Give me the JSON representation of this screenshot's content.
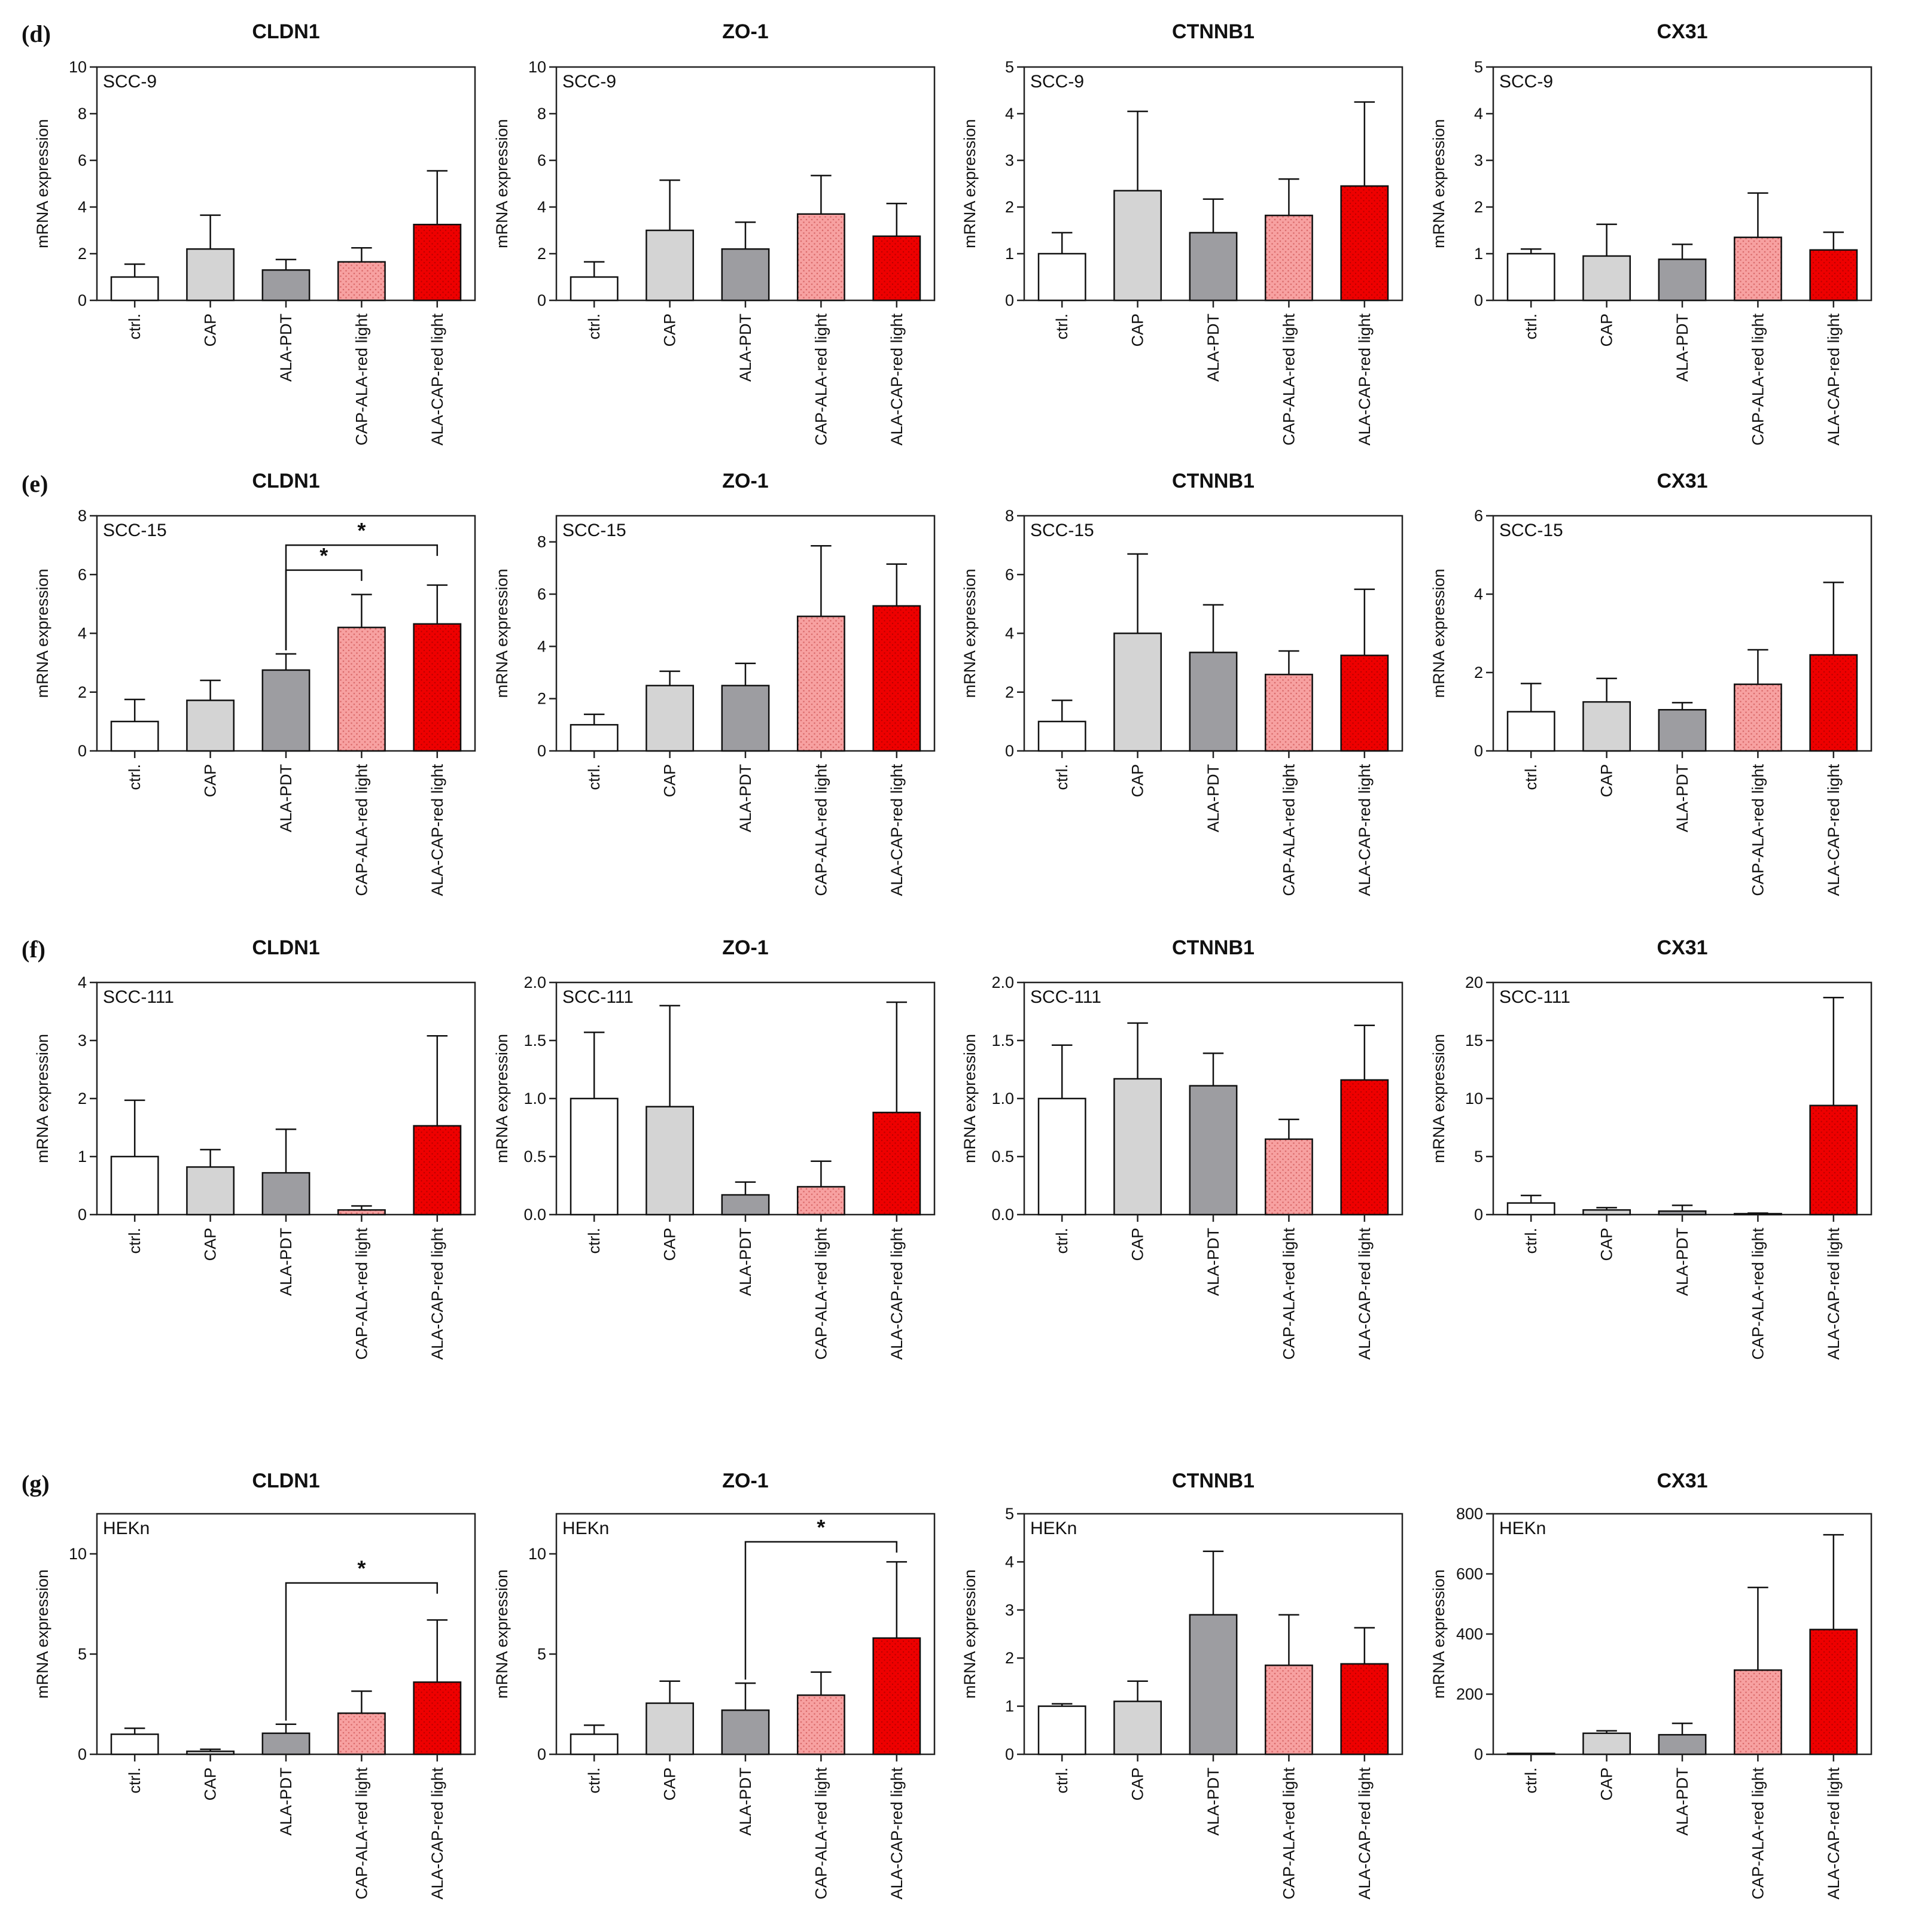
{
  "categories": [
    "ctrl.",
    "CAP",
    "ALA-PDT",
    "CAP-ALA-red light",
    "ALA-CAP-red light"
  ],
  "ylabel": "mRNA expression",
  "colors": {
    "ctrl": "#ffffff",
    "cap": "#d4d4d4",
    "alapdt": "#9d9da1",
    "capala": "#f7a1a1",
    "alacap": "#ee0000",
    "stroke": "#111111",
    "dots": "#d96a6a"
  },
  "rows": [
    {
      "letter": "(d)"
    },
    {
      "letter": "(e)"
    },
    {
      "letter": "(f)"
    },
    {
      "letter": "(g)"
    }
  ],
  "chart_data": [
    {
      "type": "bar",
      "row": 0,
      "col": 0,
      "title": "CLDN1",
      "cell_line": "SCC-9",
      "ylim": [
        0,
        10
      ],
      "yticks": [
        "0",
        "2",
        "4",
        "6",
        "8",
        "10"
      ],
      "values": [
        1.0,
        2.2,
        1.3,
        1.65,
        3.25
      ],
      "errors": [
        0.55,
        1.45,
        0.45,
        0.6,
        2.3
      ],
      "sig": []
    },
    {
      "type": "bar",
      "row": 0,
      "col": 1,
      "title": "ZO-1",
      "cell_line": "SCC-9",
      "ylim": [
        0,
        10
      ],
      "yticks": [
        "0",
        "2",
        "4",
        "6",
        "8",
        "10"
      ],
      "values": [
        1.0,
        3.0,
        2.2,
        3.7,
        2.75
      ],
      "errors": [
        0.65,
        2.15,
        1.15,
        1.65,
        1.4
      ],
      "sig": []
    },
    {
      "type": "bar",
      "row": 0,
      "col": 2,
      "title": "CTNNB1",
      "cell_line": "SCC-9",
      "ylim": [
        0,
        5
      ],
      "yticks": [
        "0",
        "1",
        "2",
        "3",
        "4",
        "5"
      ],
      "values": [
        1.0,
        2.35,
        1.45,
        1.82,
        2.45
      ],
      "errors": [
        0.45,
        1.7,
        0.72,
        0.78,
        1.8
      ],
      "sig": []
    },
    {
      "type": "bar",
      "row": 0,
      "col": 3,
      "title": "CX31",
      "cell_line": "SCC-9",
      "ylim": [
        0,
        5
      ],
      "yticks": [
        "0",
        "1",
        "2",
        "3",
        "4",
        "5"
      ],
      "values": [
        1.0,
        0.95,
        0.88,
        1.35,
        1.08
      ],
      "errors": [
        0.1,
        0.68,
        0.32,
        0.95,
        0.38
      ],
      "sig": []
    },
    {
      "type": "bar",
      "row": 1,
      "col": 0,
      "title": "CLDN1",
      "cell_line": "SCC-15",
      "ylim": [
        0,
        8
      ],
      "yticks": [
        "0",
        "2",
        "4",
        "6",
        "8"
      ],
      "values": [
        1.0,
        1.72,
        2.75,
        4.2,
        4.32
      ],
      "errors": [
        0.75,
        0.68,
        0.55,
        1.12,
        1.32
      ],
      "sig": [
        {
          "from": 2,
          "to": 3,
          "level": 6.15,
          "label": "*"
        },
        {
          "from": 2,
          "to": 4,
          "level": 7.0,
          "label": "*"
        }
      ]
    },
    {
      "type": "bar",
      "row": 1,
      "col": 1,
      "title": "ZO-1",
      "cell_line": "SCC-15",
      "ylim": [
        0,
        9
      ],
      "yticks": [
        "0",
        "2",
        "4",
        "6",
        "8"
      ],
      "values": [
        1.0,
        2.5,
        2.5,
        5.15,
        5.55
      ],
      "errors": [
        0.4,
        0.55,
        0.85,
        2.7,
        1.6
      ],
      "sig": []
    },
    {
      "type": "bar",
      "row": 1,
      "col": 2,
      "title": "CTNNB1",
      "cell_line": "SCC-15",
      "ylim": [
        0,
        8
      ],
      "yticks": [
        "0",
        "2",
        "4",
        "6",
        "8"
      ],
      "values": [
        1.0,
        4.0,
        3.35,
        2.6,
        3.25
      ],
      "errors": [
        0.72,
        2.7,
        1.62,
        0.8,
        2.25
      ],
      "sig": []
    },
    {
      "type": "bar",
      "row": 1,
      "col": 3,
      "title": "CX31",
      "cell_line": "SCC-15",
      "ylim": [
        0,
        6
      ],
      "yticks": [
        "0",
        "2",
        "4",
        "6"
      ],
      "values": [
        1.0,
        1.25,
        1.05,
        1.7,
        2.45
      ],
      "errors": [
        0.72,
        0.6,
        0.18,
        0.88,
        1.85
      ],
      "sig": []
    },
    {
      "type": "bar",
      "row": 2,
      "col": 0,
      "title": "CLDN1",
      "cell_line": "SCC-111",
      "ylim": [
        0,
        4
      ],
      "yticks": [
        "0",
        "1",
        "2",
        "3",
        "4"
      ],
      "values": [
        1.0,
        0.82,
        0.72,
        0.08,
        1.53
      ],
      "errors": [
        0.97,
        0.3,
        0.75,
        0.07,
        1.55
      ],
      "sig": []
    },
    {
      "type": "bar",
      "row": 2,
      "col": 1,
      "title": "ZO-1",
      "cell_line": "SCC-111",
      "ylim": [
        0,
        2
      ],
      "yticks": [
        "0.0",
        "0.5",
        "1.0",
        "1.5",
        "2.0"
      ],
      "values": [
        1.0,
        0.93,
        0.17,
        0.24,
        0.88
      ],
      "errors": [
        0.57,
        0.87,
        0.11,
        0.22,
        0.95
      ],
      "sig": []
    },
    {
      "type": "bar",
      "row": 2,
      "col": 2,
      "title": "CTNNB1",
      "cell_line": "SCC-111",
      "ylim": [
        0,
        2
      ],
      "yticks": [
        "0.0",
        "0.5",
        "1.0",
        "1.5",
        "2.0"
      ],
      "values": [
        1.0,
        1.17,
        1.11,
        0.65,
        1.16
      ],
      "errors": [
        0.46,
        0.48,
        0.28,
        0.17,
        0.47
      ],
      "sig": []
    },
    {
      "type": "bar",
      "row": 2,
      "col": 3,
      "title": "CX31",
      "cell_line": "SCC-111",
      "ylim": [
        0,
        20
      ],
      "yticks": [
        "0",
        "5",
        "10",
        "15",
        "20"
      ],
      "values": [
        1.0,
        0.4,
        0.3,
        0.08,
        9.4
      ],
      "errors": [
        0.65,
        0.2,
        0.5,
        0.05,
        9.3
      ],
      "sig": []
    },
    {
      "type": "bar",
      "row": 3,
      "col": 0,
      "title": "CLDN1",
      "cell_line": "HEKn",
      "ylim": [
        0,
        12
      ],
      "yticks": [
        "0",
        "5",
        "10"
      ],
      "values": [
        1.0,
        0.15,
        1.05,
        2.05,
        3.6
      ],
      "errors": [
        0.3,
        0.1,
        0.45,
        1.1,
        3.1
      ],
      "sig": [
        {
          "from": 2,
          "to": 4,
          "level": 8.55,
          "label": "*"
        }
      ]
    },
    {
      "type": "bar",
      "row": 3,
      "col": 1,
      "title": "ZO-1",
      "cell_line": "HEKn",
      "ylim": [
        0,
        12
      ],
      "yticks": [
        "0",
        "5",
        "10"
      ],
      "values": [
        1.0,
        2.55,
        2.2,
        2.95,
        5.8
      ],
      "errors": [
        0.45,
        1.1,
        1.35,
        1.15,
        3.8
      ],
      "sig": [
        {
          "from": 2,
          "to": 4,
          "level": 10.6,
          "label": "*"
        }
      ]
    },
    {
      "type": "bar",
      "row": 3,
      "col": 2,
      "title": "CTNNB1",
      "cell_line": "HEKn",
      "ylim": [
        0,
        5
      ],
      "yticks": [
        "0",
        "1",
        "2",
        "3",
        "4",
        "5"
      ],
      "values": [
        1.0,
        1.1,
        2.9,
        1.85,
        1.88
      ],
      "errors": [
        0.05,
        0.42,
        1.32,
        1.05,
        0.75
      ],
      "sig": []
    },
    {
      "type": "bar",
      "row": 3,
      "col": 3,
      "title": "CX31",
      "cell_line": "HEKn",
      "ylim": [
        0,
        800
      ],
      "yticks": [
        "0",
        "200",
        "400",
        "600",
        "800"
      ],
      "values": [
        1.0,
        70,
        65,
        280,
        415
      ],
      "errors": [
        0.5,
        8,
        38,
        275,
        315
      ],
      "sig": []
    }
  ]
}
